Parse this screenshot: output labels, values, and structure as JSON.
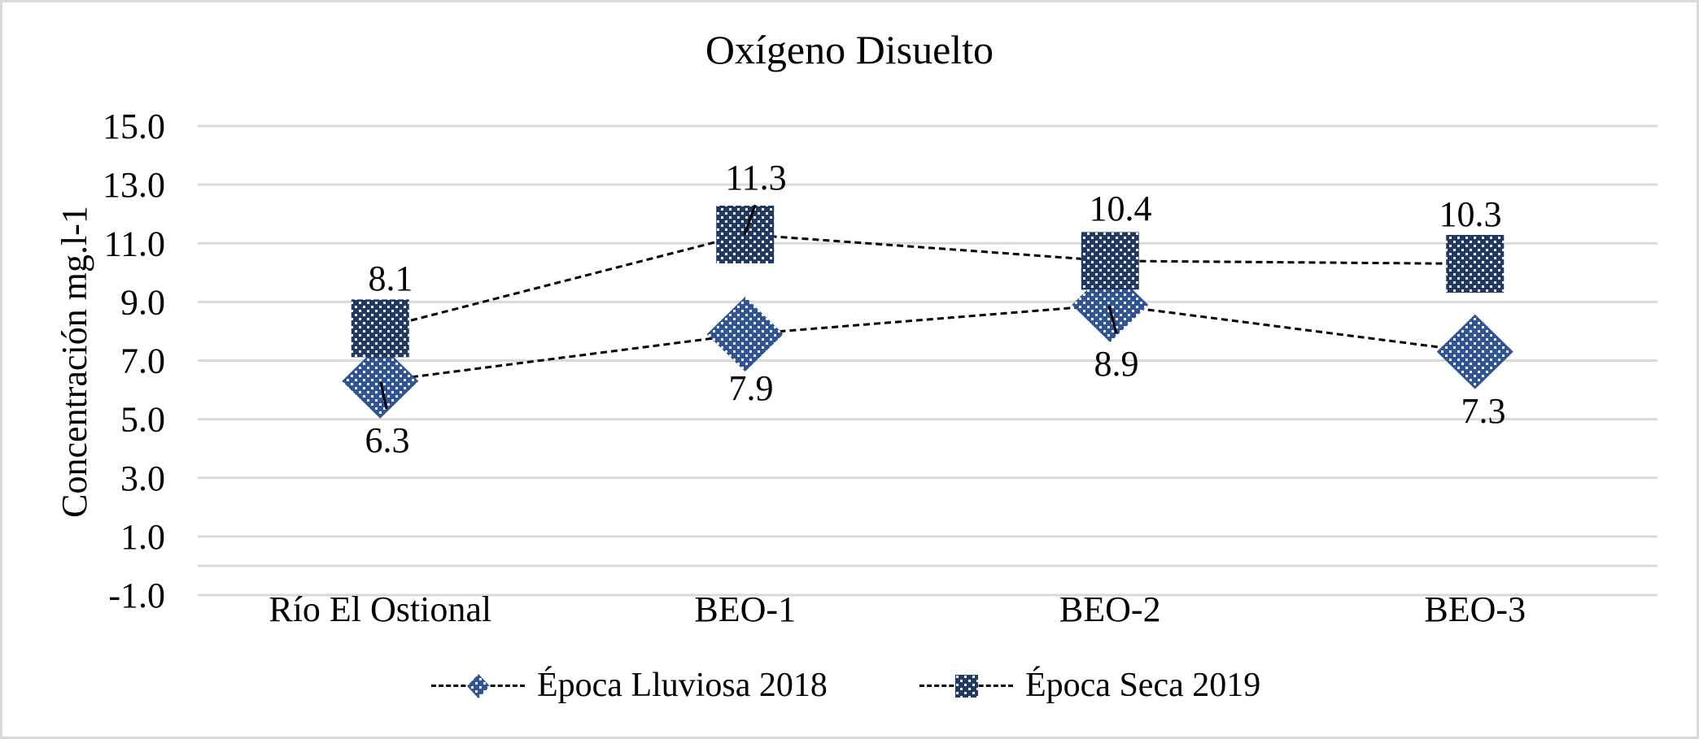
{
  "chart_data": {
    "type": "line",
    "title": "Oxígeno Disuelto",
    "xlabel": "",
    "ylabel": "Concentración mg.l-1",
    "categories": [
      "Río El Ostional",
      "BEO-1",
      "BEO-2",
      "BEO-3"
    ],
    "series": [
      {
        "name": "Época Lluviosa 2018",
        "values": [
          6.3,
          7.9,
          8.9,
          7.3
        ],
        "labels": [
          "6.3",
          "7.9",
          "8.9",
          "7.3"
        ],
        "marker": "diamond",
        "color": "#2F5597",
        "line_style": "dashed",
        "label_position": "below"
      },
      {
        "name": "Época Seca 2019",
        "values": [
          8.1,
          11.3,
          10.4,
          10.3
        ],
        "labels": [
          "8.1",
          "11.3",
          "10.4",
          "10.3"
        ],
        "marker": "square",
        "color": "#203864",
        "line_style": "dashed",
        "label_position": "above"
      }
    ],
    "ylim": [
      -1.0,
      15.0
    ],
    "yticks": [
      "15.0",
      "13.0",
      "11.0",
      "9.0",
      "7.0",
      "5.0",
      "3.0",
      "1.0",
      "-1.0"
    ],
    "ytick_values": [
      15,
      13,
      11,
      9,
      7,
      5,
      3,
      1,
      -1
    ],
    "grid": true,
    "legend_position": "bottom",
    "marker_fill": "dotted pattern"
  },
  "colors": {
    "gridline": "#d9d9d9",
    "border": "#d9d9d9",
    "line": "#000000",
    "text": "#000000"
  }
}
